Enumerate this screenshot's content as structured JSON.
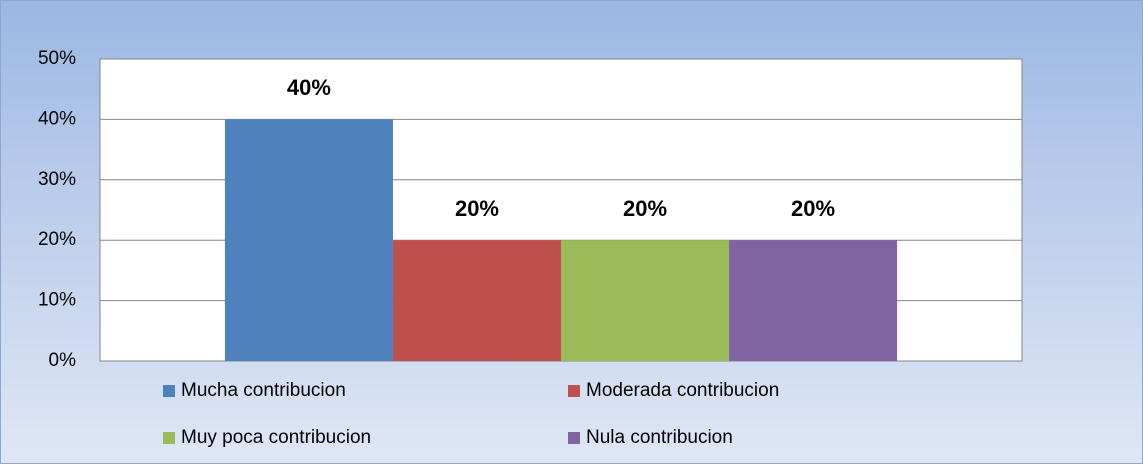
{
  "chart_data": {
    "type": "bar",
    "categories": [
      null
    ],
    "series": [
      {
        "name": "Mucha contribucion",
        "color": "#4f81bd",
        "values": [
          40
        ],
        "value_labels": [
          "40%"
        ]
      },
      {
        "name": "Moderada contribucion",
        "color": "#c0504d",
        "values": [
          20
        ],
        "value_labels": [
          "20%"
        ]
      },
      {
        "name": "Muy poca contribucion",
        "color": "#9bbb59",
        "values": [
          20
        ],
        "value_labels": [
          "20%"
        ]
      },
      {
        "name": "Nula contribucion",
        "color": "#8064a2",
        "values": [
          20
        ],
        "value_labels": [
          "20%"
        ]
      }
    ],
    "ylim": [
      0,
      50
    ],
    "yticks": [
      {
        "value": 0,
        "label": "0%"
      },
      {
        "value": 10,
        "label": "10%"
      },
      {
        "value": 20,
        "label": "20%"
      },
      {
        "value": 30,
        "label": "30%"
      },
      {
        "value": 40,
        "label": "40%"
      },
      {
        "value": 50,
        "label": "50%"
      }
    ],
    "grid": true,
    "legend": "bottom"
  }
}
